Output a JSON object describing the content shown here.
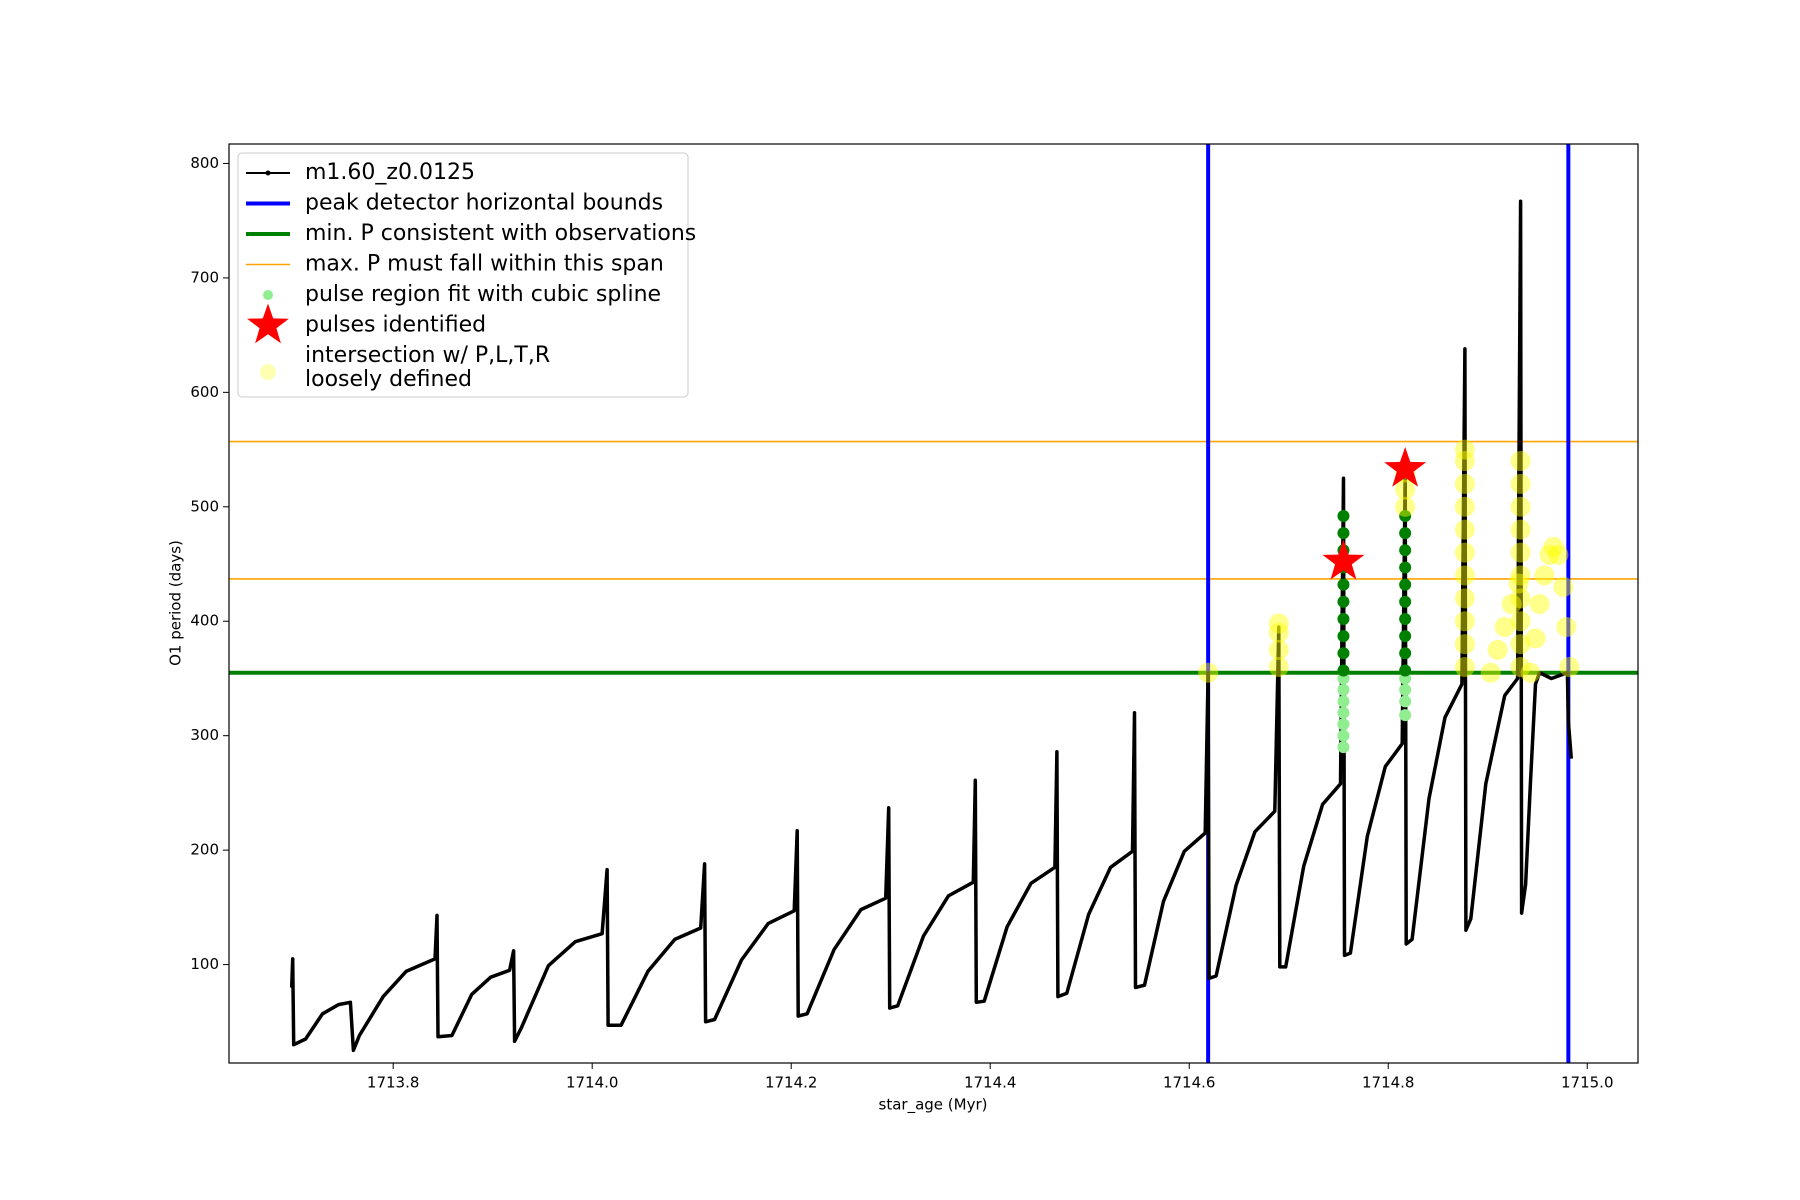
{
  "chart_data": {
    "type": "line",
    "xlabel": "star_age (Myr)",
    "ylabel": "O1 period (days)",
    "xlim": [
      1713.635,
      1715.051
    ],
    "ylim": [
      14,
      817
    ],
    "xticks": [
      1713.8,
      {
        "value": 1714,
        "label": "1714.0"
      },
      1714.2,
      1714.4,
      1714.6,
      1714.8,
      {
        "value": 1715,
        "label": "1715.0"
      }
    ],
    "yticks": [
      100,
      200,
      300,
      400,
      500,
      600,
      700,
      800
    ],
    "legend": "upper left",
    "series": [
      {
        "name": "m1.60_z0.0125",
        "color": "#000000",
        "style": "line",
        "x": [
          1713.698,
          1713.699,
          1713.7,
          1713.712,
          1713.729,
          1713.745,
          1713.757,
          1713.76,
          1713.766,
          1713.79,
          1713.813,
          1713.842,
          1713.844,
          1713.845,
          1713.859,
          1713.879,
          1713.898,
          1713.917,
          1713.921,
          1713.922,
          1713.929,
          1713.956,
          1713.983,
          1714.01,
          1714.015,
          1714.016,
          1714.029,
          1714.056,
          1714.083,
          1714.109,
          1714.113,
          1714.114,
          1714.123,
          1714.15,
          1714.177,
          1714.203,
          1714.206,
          1714.207,
          1714.216,
          1714.243,
          1714.27,
          1714.295,
          1714.298,
          1714.299,
          1714.307,
          1714.333,
          1714.358,
          1714.383,
          1714.385,
          1714.386,
          1714.394,
          1714.417,
          1714.441,
          1714.465,
          1714.467,
          1714.468,
          1714.477,
          1714.499,
          1714.521,
          1714.543,
          1714.545,
          1714.546,
          1714.555,
          1714.574,
          1714.595,
          1714.616,
          1714.619,
          1714.62,
          1714.627,
          1714.647,
          1714.666,
          1714.686,
          1714.69,
          1714.691,
          1714.697,
          1714.715,
          1714.734,
          1714.752,
          1714.755,
          1714.756,
          1714.762,
          1714.779,
          1714.797,
          1714.814,
          1714.817,
          1714.818,
          1714.824,
          1714.841,
          1714.857,
          1714.874,
          1714.877,
          1714.878,
          1714.883,
          1714.898,
          1714.917,
          1714.93,
          1714.933,
          1714.934,
          1714.938,
          1714.943,
          1714.948,
          1714.952,
          1714.964,
          1714.98,
          1714.981,
          1714.984
        ],
        "values": [
          80,
          105,
          30,
          35,
          57,
          65,
          67,
          25,
          38,
          72,
          94,
          105,
          143,
          37,
          38,
          74,
          89,
          95,
          112,
          33,
          45,
          99,
          120,
          127,
          183,
          47,
          47,
          94,
          122,
          132,
          188,
          50,
          52,
          104,
          136,
          147,
          217,
          55,
          57,
          113,
          148,
          158,
          237,
          62,
          64,
          125,
          160,
          172,
          261,
          67,
          68,
          133,
          171,
          185,
          286,
          72,
          75,
          144,
          185,
          199,
          320,
          80,
          82,
          155,
          199,
          215,
          355,
          88,
          90,
          169,
          216,
          234,
          395,
          98,
          98,
          186,
          240,
          258,
          525,
          108,
          110,
          212,
          273,
          293,
          530,
          118,
          122,
          245,
          316,
          345,
          638,
          130,
          140,
          258,
          335,
          350,
          767,
          145,
          170,
          260,
          345,
          355,
          350,
          355,
          313,
          280
        ]
      },
      {
        "name": "peak detector horizontal bounds",
        "color": "#0000ff",
        "style": "vline",
        "x": [
          1714.619,
          1714.981
        ]
      },
      {
        "name": "min. P consistent with observations",
        "color": "#008000",
        "style": "hline",
        "values": [
          355
        ]
      },
      {
        "name": "max. P must fall within this span",
        "color": "#ffa500",
        "style": "hline-thin",
        "values": [
          437,
          557
        ]
      },
      {
        "name": "pulse region fit with cubic spline",
        "color": "#90ee90",
        "style": "dot",
        "x": [
          1714.755,
          1714.755,
          1714.755,
          1714.755,
          1714.755,
          1714.755,
          1714.755,
          1714.817,
          1714.817,
          1714.817,
          1714.817
        ],
        "values": [
          290,
          300,
          310,
          320,
          330,
          340,
          350,
          318,
          330,
          340,
          350
        ]
      },
      {
        "color": "#008000",
        "style": "dot",
        "x": [
          1714.755,
          1714.755,
          1714.755,
          1714.755,
          1714.755,
          1714.755,
          1714.755,
          1714.755,
          1714.755,
          1714.755,
          1714.817,
          1714.817,
          1714.817,
          1714.817,
          1714.817,
          1714.817,
          1714.817,
          1714.817,
          1714.817,
          1714.817
        ],
        "values": [
          357,
          372,
          387,
          402,
          417,
          432,
          447,
          462,
          477,
          492,
          357,
          372,
          387,
          402,
          417,
          432,
          447,
          462,
          477,
          492
        ]
      },
      {
        "name": "pulses identified",
        "color": "#ff0000",
        "style": "star",
        "x": [
          1714.755,
          1714.817
        ],
        "values": [
          452,
          533
        ]
      },
      {
        "name": [
          "intersection w/ P,L,T,R",
          "loosely defined"
        ],
        "color": "#ffff00",
        "style": "faint",
        "x": [
          1714.619,
          1714.69,
          1714.69,
          1714.69,
          1714.69,
          1714.817,
          1714.817,
          1714.817,
          1714.877,
          1714.877,
          1714.877,
          1714.877,
          1714.877,
          1714.877,
          1714.877,
          1714.877,
          1714.877,
          1714.877,
          1714.877,
          1714.933,
          1714.933,
          1714.933,
          1714.933,
          1714.933,
          1714.933,
          1714.933,
          1714.933,
          1714.933,
          1714.933,
          1714.903,
          1714.91,
          1714.917,
          1714.924,
          1714.931,
          1714.943,
          1714.948,
          1714.952,
          1714.957,
          1714.962,
          1714.966,
          1714.971,
          1714.976,
          1714.979,
          1714.982
        ],
        "values": [
          355,
          360,
          375,
          390,
          398,
          500,
          515,
          530,
          360,
          380,
          400,
          420,
          440,
          460,
          480,
          500,
          520,
          540,
          550,
          360,
          380,
          400,
          420,
          440,
          460,
          480,
          500,
          520,
          540,
          355,
          375,
          395,
          415,
          433,
          355,
          385,
          415,
          440,
          458,
          465,
          458,
          430,
          395,
          360
        ]
      }
    ]
  }
}
